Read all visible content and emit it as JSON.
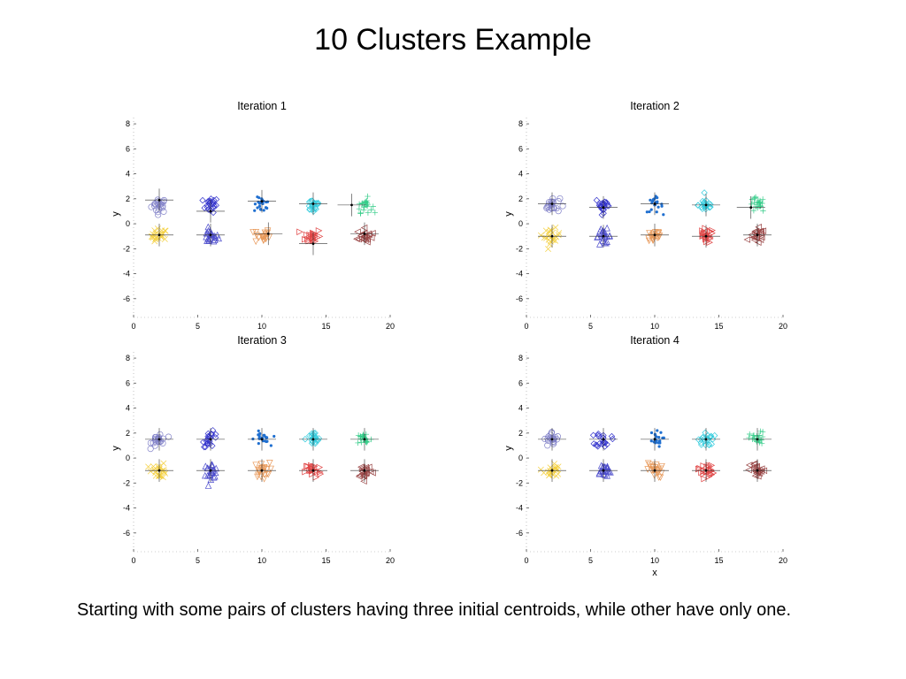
{
  "slide": {
    "title": "10 Clusters Example",
    "caption": "Starting with some pairs of clusters having three initial centroids, while other have only one."
  },
  "cluster_colors": [
    "#8080c8",
    "#f4d03f",
    "#3333cc",
    "#4b4bcc",
    "#1f6fd0",
    "#e8995a",
    "#33ccdd",
    "#e04444",
    "#33cc88",
    "#994444"
  ],
  "cluster_markers": [
    "circle",
    "cross",
    "diamond",
    "triangle-up",
    "dot",
    "triangle-down",
    "diamond",
    "triangle-right",
    "plus",
    "triangle-left"
  ],
  "chart_data": [
    {
      "type": "scatter",
      "title": "Iteration 1",
      "xlabel": "",
      "ylabel": "y",
      "xlim": [
        0,
        20
      ],
      "ylim": [
        -7.5,
        8.5
      ],
      "xticks": [
        0,
        5,
        10,
        15,
        20
      ],
      "yticks": [
        -6,
        -4,
        -2,
        0,
        2,
        4,
        6,
        8
      ],
      "grid": false,
      "clusters": [
        {
          "cx": 2.0,
          "cy": 1.5,
          "sx": 0.5,
          "sy": 0.5
        },
        {
          "cx": 2.0,
          "cy": -1.0,
          "sx": 0.5,
          "sy": 0.5
        },
        {
          "cx": 6.0,
          "cy": 1.5,
          "sx": 0.5,
          "sy": 0.5
        },
        {
          "cx": 6.0,
          "cy": -1.0,
          "sx": 0.5,
          "sy": 0.5
        },
        {
          "cx": 10.0,
          "cy": 1.5,
          "sx": 0.5,
          "sy": 0.5
        },
        {
          "cx": 10.0,
          "cy": -1.0,
          "sx": 0.5,
          "sy": 0.5
        },
        {
          "cx": 14.0,
          "cy": 1.5,
          "sx": 0.5,
          "sy": 0.5
        },
        {
          "cx": 14.0,
          "cy": -1.0,
          "sx": 0.5,
          "sy": 0.5
        },
        {
          "cx": 18.0,
          "cy": 1.5,
          "sx": 0.5,
          "sy": 0.5
        },
        {
          "cx": 18.0,
          "cy": -1.0,
          "sx": 0.5,
          "sy": 0.5
        }
      ],
      "centroids": [
        [
          2.0,
          1.9
        ],
        [
          2.0,
          -0.9
        ],
        [
          6.0,
          1.0
        ],
        [
          6.0,
          -0.9
        ],
        [
          10.0,
          1.8
        ],
        [
          10.5,
          -0.8
        ],
        [
          14.0,
          1.6
        ],
        [
          14.0,
          -1.6
        ],
        [
          17.0,
          1.5
        ],
        [
          18.0,
          -0.8
        ]
      ]
    },
    {
      "type": "scatter",
      "title": "Iteration 2",
      "xlabel": "",
      "ylabel": "y",
      "xlim": [
        0,
        20
      ],
      "ylim": [
        -7.5,
        8.5
      ],
      "xticks": [
        0,
        5,
        10,
        15,
        20
      ],
      "yticks": [
        -6,
        -4,
        -2,
        0,
        2,
        4,
        6,
        8
      ],
      "grid": false,
      "clusters": [
        {
          "cx": 2.0,
          "cy": 1.5,
          "sx": 0.5,
          "sy": 0.5
        },
        {
          "cx": 2.0,
          "cy": -1.0,
          "sx": 0.5,
          "sy": 0.5
        },
        {
          "cx": 6.0,
          "cy": 1.5,
          "sx": 0.5,
          "sy": 0.5
        },
        {
          "cx": 6.0,
          "cy": -1.0,
          "sx": 0.5,
          "sy": 0.5
        },
        {
          "cx": 10.0,
          "cy": 1.5,
          "sx": 0.5,
          "sy": 0.5
        },
        {
          "cx": 10.0,
          "cy": -1.0,
          "sx": 0.5,
          "sy": 0.5
        },
        {
          "cx": 14.0,
          "cy": 1.5,
          "sx": 0.5,
          "sy": 0.5
        },
        {
          "cx": 14.0,
          "cy": -1.0,
          "sx": 0.5,
          "sy": 0.5
        },
        {
          "cx": 18.0,
          "cy": 1.5,
          "sx": 0.5,
          "sy": 0.5
        },
        {
          "cx": 18.0,
          "cy": -1.0,
          "sx": 0.5,
          "sy": 0.5
        }
      ],
      "centroids": [
        [
          2.0,
          1.6
        ],
        [
          2.0,
          -1.0
        ],
        [
          6.0,
          1.3
        ],
        [
          6.0,
          -1.0
        ],
        [
          10.0,
          1.6
        ],
        [
          10.0,
          -0.9
        ],
        [
          14.0,
          1.5
        ],
        [
          14.0,
          -1.0
        ],
        [
          17.5,
          1.3
        ],
        [
          18.0,
          -0.9
        ]
      ]
    },
    {
      "type": "scatter",
      "title": "Iteration 3",
      "xlabel": "",
      "ylabel": "y",
      "xlim": [
        0,
        20
      ],
      "ylim": [
        -7.5,
        8.5
      ],
      "xticks": [
        0,
        5,
        10,
        15,
        20
      ],
      "yticks": [
        -6,
        -4,
        -2,
        0,
        2,
        4,
        6,
        8
      ],
      "grid": false,
      "clusters": [
        {
          "cx": 2.0,
          "cy": 1.5,
          "sx": 0.5,
          "sy": 0.5
        },
        {
          "cx": 2.0,
          "cy": -1.0,
          "sx": 0.5,
          "sy": 0.5
        },
        {
          "cx": 6.0,
          "cy": 1.5,
          "sx": 0.5,
          "sy": 0.5
        },
        {
          "cx": 6.0,
          "cy": -1.0,
          "sx": 0.5,
          "sy": 0.5
        },
        {
          "cx": 10.0,
          "cy": 1.5,
          "sx": 0.5,
          "sy": 0.5
        },
        {
          "cx": 10.0,
          "cy": -1.0,
          "sx": 0.5,
          "sy": 0.5
        },
        {
          "cx": 14.0,
          "cy": 1.5,
          "sx": 0.5,
          "sy": 0.5
        },
        {
          "cx": 14.0,
          "cy": -1.0,
          "sx": 0.5,
          "sy": 0.5
        },
        {
          "cx": 18.0,
          "cy": 1.5,
          "sx": 0.5,
          "sy": 0.5
        },
        {
          "cx": 18.0,
          "cy": -1.0,
          "sx": 0.5,
          "sy": 0.5
        }
      ],
      "centroids": [
        [
          2.0,
          1.5
        ],
        [
          2.0,
          -1.0
        ],
        [
          6.0,
          1.5
        ],
        [
          6.0,
          -1.0
        ],
        [
          10.0,
          1.5
        ],
        [
          10.0,
          -1.0
        ],
        [
          14.0,
          1.5
        ],
        [
          14.0,
          -1.0
        ],
        [
          18.0,
          1.5
        ],
        [
          18.0,
          -1.0
        ]
      ]
    },
    {
      "type": "scatter",
      "title": "Iteration 4",
      "xlabel": "x",
      "ylabel": "y",
      "xlim": [
        0,
        20
      ],
      "ylim": [
        -7.5,
        8.5
      ],
      "xticks": [
        0,
        5,
        10,
        15,
        20
      ],
      "yticks": [
        -6,
        -4,
        -2,
        0,
        2,
        4,
        6,
        8
      ],
      "grid": false,
      "clusters": [
        {
          "cx": 2.0,
          "cy": 1.5,
          "sx": 0.5,
          "sy": 0.5
        },
        {
          "cx": 2.0,
          "cy": -1.0,
          "sx": 0.5,
          "sy": 0.5
        },
        {
          "cx": 6.0,
          "cy": 1.5,
          "sx": 0.5,
          "sy": 0.5
        },
        {
          "cx": 6.0,
          "cy": -1.0,
          "sx": 0.5,
          "sy": 0.5
        },
        {
          "cx": 10.0,
          "cy": 1.5,
          "sx": 0.5,
          "sy": 0.5
        },
        {
          "cx": 10.0,
          "cy": -1.0,
          "sx": 0.5,
          "sy": 0.5
        },
        {
          "cx": 14.0,
          "cy": 1.5,
          "sx": 0.5,
          "sy": 0.5
        },
        {
          "cx": 14.0,
          "cy": -1.0,
          "sx": 0.5,
          "sy": 0.5
        },
        {
          "cx": 18.0,
          "cy": 1.5,
          "sx": 0.5,
          "sy": 0.5
        },
        {
          "cx": 18.0,
          "cy": -1.0,
          "sx": 0.5,
          "sy": 0.5
        }
      ],
      "centroids": [
        [
          2.0,
          1.5
        ],
        [
          2.0,
          -1.0
        ],
        [
          6.0,
          1.5
        ],
        [
          6.0,
          -1.0
        ],
        [
          10.0,
          1.5
        ],
        [
          10.0,
          -1.0
        ],
        [
          14.0,
          1.5
        ],
        [
          14.0,
          -1.0
        ],
        [
          18.0,
          1.5
        ],
        [
          18.0,
          -1.0
        ]
      ]
    }
  ]
}
